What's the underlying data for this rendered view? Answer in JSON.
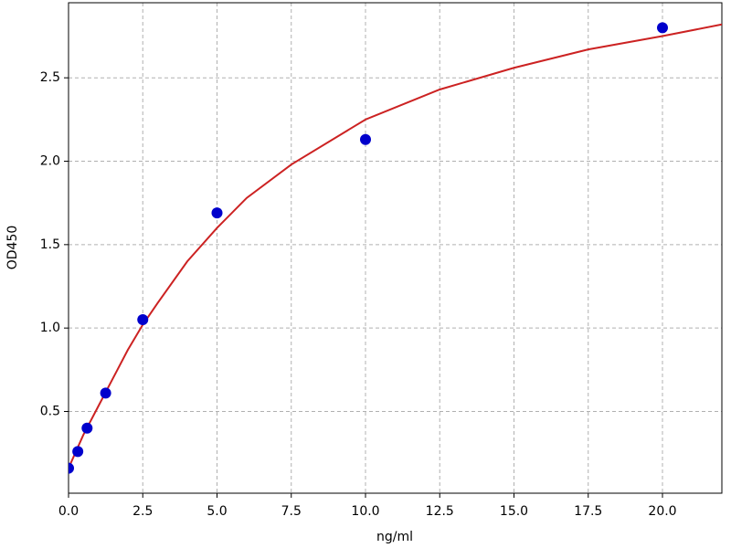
{
  "chart_data": {
    "type": "scatter",
    "x_label": "ng/ml",
    "y_label": "OD450",
    "points": {
      "color": "#0000cc",
      "x": [
        0,
        0.3125,
        0.625,
        1.25,
        2.5,
        5,
        10,
        20
      ],
      "values": [
        0.16,
        0.26,
        0.4,
        0.61,
        1.05,
        1.69,
        2.13,
        2.8
      ]
    },
    "fit": {
      "color": "#cc2222",
      "x": [
        0,
        0.5,
        1,
        1.5,
        2,
        2.5,
        3,
        4,
        5,
        6,
        7.5,
        10,
        12.5,
        15,
        17.5,
        20,
        22
      ],
      "values": [
        0.16,
        0.36,
        0.53,
        0.7,
        0.87,
        1.02,
        1.15,
        1.4,
        1.6,
        1.78,
        1.98,
        2.25,
        2.43,
        2.56,
        2.67,
        2.75,
        2.82
      ]
    },
    "xlim": [
      0,
      22
    ],
    "ylim": [
      0.01,
      2.95
    ],
    "xticks": [
      {
        "value": 0,
        "label": "0.0"
      },
      2.5,
      {
        "value": 5,
        "label": "5.0"
      },
      7.5,
      {
        "value": 10,
        "label": "10.0"
      },
      12.5,
      {
        "value": 15,
        "label": "15.0"
      },
      17.5,
      {
        "value": 20,
        "label": "20.0"
      }
    ],
    "yticks": [
      0.5,
      {
        "value": 1,
        "label": "1.0"
      },
      1.5,
      {
        "value": 2,
        "label": "2.0"
      },
      2.5
    ],
    "grid": true
  }
}
